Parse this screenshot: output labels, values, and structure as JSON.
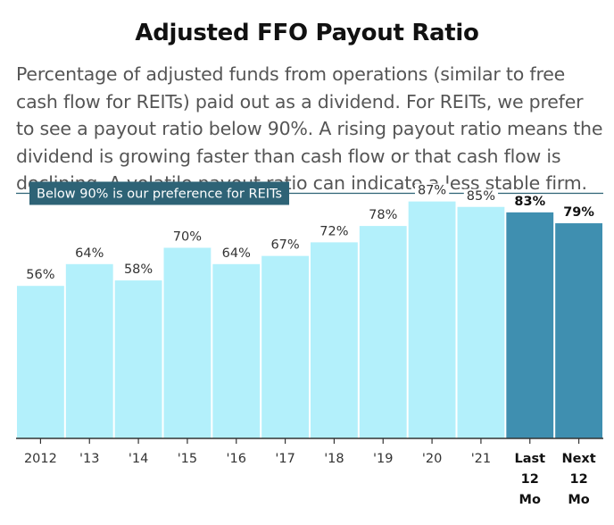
{
  "header": {
    "title": "Adjusted FFO Payout Ratio",
    "description": "Percentage of adjusted funds from operations (similar to free cash flow for REITs) paid out as a dividend. For REITs, we prefer to see a payout ratio below 90%. A rising payout ratio means the dividend is growing faster than cash flow or that cash flow is declining. A volatile payout ratio can indicate a less stable firm."
  },
  "chart_data": {
    "type": "bar",
    "categories": [
      "2012",
      "'13",
      "'14",
      "'15",
      "'16",
      "'17",
      "'18",
      "'19",
      "'20",
      "'21",
      "Last 12 Mo",
      "Next 12 Mo"
    ],
    "category_lines": [
      [
        "2012"
      ],
      [
        "'13"
      ],
      [
        "'14"
      ],
      [
        "'15"
      ],
      [
        "'16"
      ],
      [
        "'17"
      ],
      [
        "'18"
      ],
      [
        "'19"
      ],
      [
        "'20"
      ],
      [
        "'21"
      ],
      [
        "Last",
        "12",
        "Mo"
      ],
      [
        "Next",
        "12",
        "Mo"
      ]
    ],
    "values": [
      56,
      64,
      58,
      70,
      64,
      67,
      72,
      78,
      87,
      85,
      83,
      79
    ],
    "value_labels": [
      "56%",
      "64%",
      "58%",
      "70%",
      "64%",
      "67%",
      "72%",
      "78%",
      "87%",
      "85%",
      "83%",
      "79%"
    ],
    "highlighted": [
      false,
      false,
      false,
      false,
      false,
      false,
      false,
      false,
      false,
      false,
      true,
      true
    ],
    "reference_line": {
      "value": 90,
      "label": "Below 90% is our preference for REITs"
    },
    "ylim": [
      0,
      90
    ],
    "grid": false,
    "colors": {
      "bar": "#b3f0fb",
      "bar_highlight": "#3f8fb0",
      "reference": "#2e6376",
      "axis": "#333333"
    }
  }
}
